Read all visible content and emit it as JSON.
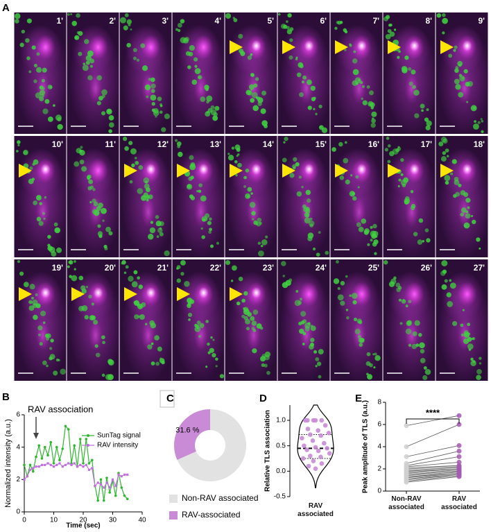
{
  "panel_labels": [
    "A",
    "B",
    "C",
    "D",
    "E"
  ],
  "timelapse": {
    "frames": [
      {
        "label": "1'",
        "arrow": false
      },
      {
        "label": "2'",
        "arrow": false
      },
      {
        "label": "3'",
        "arrow": false
      },
      {
        "label": "4'",
        "arrow": false
      },
      {
        "label": "5'",
        "arrow": true
      },
      {
        "label": "6'",
        "arrow": true
      },
      {
        "label": "7'",
        "arrow": true
      },
      {
        "label": "8'",
        "arrow": true
      },
      {
        "label": "9'",
        "arrow": true
      },
      {
        "label": "10'",
        "arrow": true
      },
      {
        "label": "11'",
        "arrow": false
      },
      {
        "label": "12'",
        "arrow": true
      },
      {
        "label": "13'",
        "arrow": true
      },
      {
        "label": "14'",
        "arrow": true
      },
      {
        "label": "15'",
        "arrow": true
      },
      {
        "label": "16'",
        "arrow": true
      },
      {
        "label": "17'",
        "arrow": true
      },
      {
        "label": "18'",
        "arrow": true
      },
      {
        "label": "19'",
        "arrow": true
      },
      {
        "label": "20'",
        "arrow": true
      },
      {
        "label": "21'",
        "arrow": true
      },
      {
        "label": "22'",
        "arrow": true
      },
      {
        "label": "23'",
        "arrow": true
      },
      {
        "label": "24'",
        "arrow": false
      },
      {
        "label": "25'",
        "arrow": false
      },
      {
        "label": "26'",
        "arrow": false
      },
      {
        "label": "27'",
        "arrow": false
      }
    ]
  },
  "chart_data": [
    {
      "type": "line",
      "xlabel": "Time (sec)",
      "ylabel": "Normalized intensity (a.u.)",
      "annotation": {
        "text": "RAV association",
        "x": 4
      },
      "x": [
        0,
        1,
        2,
        3,
        4,
        5,
        6,
        7,
        8,
        9,
        10,
        11,
        12,
        13,
        14,
        15,
        16,
        17,
        18,
        19,
        20,
        21,
        22,
        23,
        24,
        25,
        26,
        27,
        28,
        29,
        30,
        31,
        32,
        33,
        34,
        35
      ],
      "series": [
        {
          "name": "SunTag signal",
          "color": "#2db82d",
          "values": [
            2.9,
            2.2,
            2.9,
            2.5,
            3.4,
            4.1,
            3.3,
            4.0,
            3.5,
            4.3,
            3.0,
            4.0,
            3.2,
            3.9,
            5.3,
            5.1,
            3.0,
            4.1,
            2.8,
            4.5,
            3.0,
            4.5,
            3.0,
            3.2,
            1.6,
            0.7,
            2.0,
            0.7,
            2.1,
            1.2,
            1.9,
            1.0,
            2.4,
            1.5,
            1.0,
            0.8
          ]
        },
        {
          "name": "RAV intensity",
          "color": "#c06ee0",
          "values": [
            2.0,
            2.2,
            2.6,
            2.7,
            2.8,
            2.8,
            2.9,
            2.9,
            3.0,
            2.9,
            2.8,
            2.9,
            3.0,
            2.8,
            2.9,
            3.0,
            2.9,
            3.0,
            2.8,
            2.9,
            2.8,
            2.9,
            2.6,
            2.7,
            1.6,
            1.8,
            1.7,
            1.5,
            1.8,
            1.5,
            2.0,
            1.6,
            2.3,
            2.2,
            2.3,
            2.3
          ]
        }
      ],
      "xlim": [
        0,
        40
      ],
      "xticks": [
        0,
        10,
        20,
        30,
        40
      ],
      "ylim": [
        0,
        6
      ],
      "yticks": [
        0,
        2,
        4,
        6
      ],
      "legend": "upper right"
    },
    {
      "type": "donut",
      "categories": [
        "Non-RAV associated",
        "RAV-associated"
      ],
      "values": [
        68.4,
        31.6
      ],
      "value_labels": [
        null,
        "31.6 %"
      ],
      "colors": [
        "#e2e2e2",
        "#c98bd6"
      ]
    },
    {
      "type": "violin",
      "ylabel": "Relative TLS association",
      "categories": [
        "RAV associated"
      ],
      "values": [
        1.0,
        1.0,
        1.0,
        1.0,
        1.0,
        0.9,
        0.83,
        0.8,
        0.75,
        0.72,
        0.7,
        0.65,
        0.6,
        0.55,
        0.5,
        0.47,
        0.45,
        0.42,
        0.4,
        0.35,
        0.3,
        0.28,
        0.25,
        0.2,
        0.15,
        0.1,
        0.05
      ],
      "median": 0.45,
      "quartiles": [
        0.25,
        0.72
      ],
      "color": "#c98bd6",
      "ylim": [
        -0.5,
        1.3
      ],
      "yticks": [
        -0.5,
        {
          "value": 0,
          "label": "0.0"
        },
        0.5,
        {
          "value": 1,
          "label": "1.0"
        }
      ]
    },
    {
      "type": "paired",
      "ylabel": "Peak amplitude of TLS (a.u.)",
      "categories": [
        "Non-RAV associated",
        "RAV associated"
      ],
      "values": [
        [
          5.9,
          4.0,
          3.1,
          2.5,
          2.3,
          2.2,
          2.1,
          2.0,
          1.9,
          1.8,
          1.7,
          1.6,
          1.5,
          1.5,
          1.4,
          1.3,
          1.2,
          1.1,
          1.0,
          0.9,
          0.8
        ],
        [
          6.8,
          6.0,
          4.1,
          3.6,
          3.1,
          2.6,
          2.3,
          2.2,
          2.1,
          2.0,
          2.0,
          1.9,
          1.8,
          1.8,
          1.7,
          1.6,
          1.6,
          1.5,
          1.5,
          1.4,
          1.3
        ]
      ],
      "colors": [
        "#cfcfcf",
        "#a35ab3"
      ],
      "annotation": "****",
      "ylim": [
        0,
        8
      ],
      "yticks": [
        0,
        2,
        4,
        6,
        8
      ]
    }
  ]
}
